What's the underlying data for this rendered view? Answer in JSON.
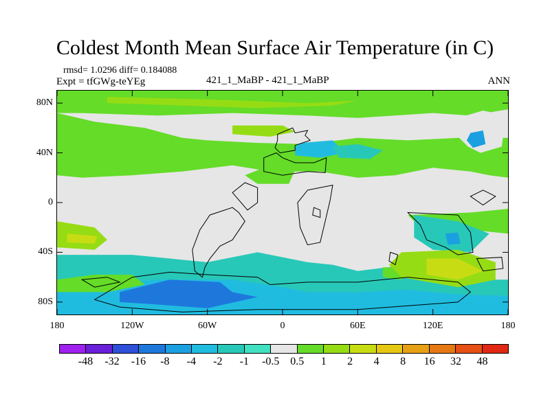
{
  "chart_data": {
    "type": "heatmap",
    "title": "Coldest Month Mean Surface Air Temperature (in C)",
    "stats_text": "rmsd= 1.0296 diff= 0.184088",
    "expt_text": "Expt = tfGWg-teYEg",
    "center_label": "421_1_MaBP - 421_1_MaBP",
    "right_label": "ANN",
    "x_ticks": [
      {
        "value": -180,
        "label": "180"
      },
      {
        "value": -120,
        "label": "120W"
      },
      {
        "value": -60,
        "label": "60W"
      },
      {
        "value": 0,
        "label": "0"
      },
      {
        "value": 60,
        "label": "60E"
      },
      {
        "value": 120,
        "label": "120E"
      },
      {
        "value": 180,
        "label": "180"
      }
    ],
    "y_ticks": [
      {
        "value": 80,
        "label": "80N"
      },
      {
        "value": 40,
        "label": "40N"
      },
      {
        "value": 0,
        "label": "0"
      },
      {
        "value": -40,
        "label": "40S"
      },
      {
        "value": -80,
        "label": "80S"
      }
    ],
    "xlim": [
      -180,
      180
    ],
    "ylim": [
      -90,
      90
    ],
    "colorbar": {
      "colors": [
        "#a020f0",
        "#6a1fd8",
        "#2e4fd8",
        "#1e78dc",
        "#1aa0e0",
        "#20bce0",
        "#28c8b8",
        "#40e0c0",
        "#e6e6e6",
        "#64dc28",
        "#96dc14",
        "#c8dc14",
        "#e6c814",
        "#e6a014",
        "#e67814",
        "#e65014",
        "#e02814"
      ],
      "labels": [
        "-48",
        "-32",
        "-16",
        "-8",
        "-4",
        "-2",
        "-1",
        "-0.5",
        "0.5",
        "1",
        "2",
        "4",
        "8",
        "16",
        "32",
        "48"
      ]
    },
    "regions": [
      {
        "level": "1",
        "points": [
          [
            -180,
            90
          ],
          [
            180,
            90
          ],
          [
            180,
            75
          ],
          [
            150,
            70
          ],
          [
            120,
            72
          ],
          [
            60,
            68
          ],
          [
            20,
            70
          ],
          [
            -40,
            72
          ],
          [
            -100,
            70
          ],
          [
            -160,
            72
          ],
          [
            -180,
            72
          ]
        ]
      },
      {
        "level": "1",
        "points": [
          [
            -180,
            72
          ],
          [
            -150,
            65
          ],
          [
            -110,
            60
          ],
          [
            -80,
            52
          ],
          [
            -60,
            50
          ],
          [
            -20,
            48
          ],
          [
            20,
            47
          ],
          [
            60,
            52
          ],
          [
            100,
            50
          ],
          [
            140,
            52
          ],
          [
            180,
            52
          ],
          [
            180,
            20
          ],
          [
            165,
            22
          ],
          [
            150,
            25
          ],
          [
            120,
            28
          ],
          [
            90,
            22
          ],
          [
            60,
            20
          ],
          [
            30,
            25
          ],
          [
            -10,
            25
          ],
          [
            -40,
            30
          ],
          [
            -80,
            25
          ],
          [
            -120,
            22
          ],
          [
            -160,
            20
          ],
          [
            -180,
            22
          ]
        ]
      },
      {
        "level": "2",
        "points": [
          [
            -140,
            85
          ],
          [
            -60,
            83
          ],
          [
            20,
            80
          ],
          [
            60,
            82
          ],
          [
            40,
            78
          ],
          [
            -20,
            76
          ],
          [
            -80,
            78
          ],
          [
            -140,
            80
          ]
        ]
      },
      {
        "level": "2",
        "points": [
          [
            -40,
            62
          ],
          [
            0,
            62
          ],
          [
            10,
            57
          ],
          [
            -10,
            53
          ],
          [
            -40,
            55
          ]
        ]
      },
      {
        "level": "0.5",
        "points": [
          [
            140,
            68
          ],
          [
            160,
            74
          ],
          [
            178,
            70
          ],
          [
            175,
            45
          ],
          [
            158,
            40
          ],
          [
            148,
            45
          ],
          [
            138,
            55
          ]
        ]
      },
      {
        "level": "-4",
        "points": [
          [
            150,
            56
          ],
          [
            160,
            58
          ],
          [
            162,
            47
          ],
          [
            152,
            44
          ],
          [
            147,
            50
          ]
        ]
      },
      {
        "level": "-2",
        "points": [
          [
            10,
            45
          ],
          [
            15,
            48
          ],
          [
            40,
            50
          ],
          [
            50,
            40
          ],
          [
            30,
            36
          ],
          [
            10,
            38
          ]
        ]
      },
      {
        "level": "-1",
        "points": [
          [
            40,
            45
          ],
          [
            60,
            47
          ],
          [
            80,
            42
          ],
          [
            70,
            35
          ],
          [
            45,
            36
          ]
        ]
      },
      {
        "level": "1",
        "points": [
          [
            -30,
            22
          ],
          [
            -10,
            30
          ],
          [
            10,
            26
          ],
          [
            5,
            15
          ],
          [
            -20,
            15
          ]
        ]
      },
      {
        "level": "1",
        "points": [
          [
            100,
            -10
          ],
          [
            150,
            -8
          ],
          [
            180,
            -5
          ],
          [
            180,
            -25
          ],
          [
            150,
            -22
          ],
          [
            110,
            -20
          ]
        ]
      },
      {
        "level": "-1",
        "points": [
          [
            105,
            -10
          ],
          [
            140,
            -15
          ],
          [
            165,
            -25
          ],
          [
            150,
            -40
          ],
          [
            120,
            -38
          ],
          [
            105,
            -28
          ]
        ]
      },
      {
        "level": "-4",
        "points": [
          [
            130,
            -25
          ],
          [
            140,
            -24
          ],
          [
            142,
            -33
          ],
          [
            132,
            -34
          ]
        ]
      },
      {
        "level": "2",
        "points": [
          [
            -180,
            -15
          ],
          [
            -150,
            -20
          ],
          [
            -140,
            -30
          ],
          [
            -150,
            -38
          ],
          [
            -180,
            -36
          ]
        ]
      },
      {
        "level": "4",
        "points": [
          [
            -172,
            -25
          ],
          [
            -148,
            -27
          ],
          [
            -150,
            -33
          ],
          [
            -172,
            -32
          ]
        ]
      },
      {
        "level": "-1",
        "points": [
          [
            -180,
            -42
          ],
          [
            -120,
            -42
          ],
          [
            -60,
            -48
          ],
          [
            -20,
            -40
          ],
          [
            20,
            -48
          ],
          [
            40,
            -50
          ],
          [
            60,
            -55
          ],
          [
            100,
            -50
          ],
          [
            120,
            -58
          ],
          [
            140,
            -62
          ],
          [
            180,
            -62
          ],
          [
            180,
            -90
          ],
          [
            -180,
            -90
          ]
        ]
      },
      {
        "level": "-2",
        "points": [
          [
            -160,
            -68
          ],
          [
            -100,
            -62
          ],
          [
            -40,
            -62
          ],
          [
            0,
            -68
          ],
          [
            20,
            -72
          ],
          [
            60,
            -72
          ],
          [
            100,
            -70
          ],
          [
            140,
            -74
          ],
          [
            180,
            -75
          ],
          [
            180,
            -90
          ],
          [
            -180,
            -90
          ],
          [
            -180,
            -72
          ]
        ]
      },
      {
        "level": "-8",
        "points": [
          [
            -130,
            -72
          ],
          [
            -90,
            -62
          ],
          [
            -50,
            -64
          ],
          [
            -40,
            -72
          ],
          [
            -20,
            -76
          ],
          [
            -60,
            -85
          ],
          [
            -100,
            -82
          ],
          [
            -130,
            -80
          ]
        ]
      },
      {
        "level": "1",
        "points": [
          [
            -180,
            -62
          ],
          [
            -150,
            -58
          ],
          [
            -120,
            -58
          ],
          [
            -110,
            -66
          ],
          [
            -140,
            -72
          ],
          [
            -180,
            -72
          ]
        ]
      },
      {
        "level": "1",
        "points": [
          [
            80,
            -52
          ],
          [
            100,
            -52
          ],
          [
            95,
            -62
          ],
          [
            80,
            -60
          ]
        ]
      },
      {
        "level": "2",
        "points": [
          [
            95,
            -40
          ],
          [
            140,
            -38
          ],
          [
            170,
            -48
          ],
          [
            170,
            -62
          ],
          [
            140,
            -68
          ],
          [
            95,
            -60
          ],
          [
            85,
            -50
          ]
        ]
      },
      {
        "level": "4",
        "points": [
          [
            115,
            -45
          ],
          [
            140,
            -45
          ],
          [
            160,
            -55
          ],
          [
            140,
            -62
          ],
          [
            115,
            -58
          ]
        ]
      }
    ],
    "coastlines": [
      [
        [
          -4,
          55
        ],
        [
          8,
          60
        ],
        [
          10,
          56
        ],
        [
          20,
          58
        ],
        [
          18,
          54
        ],
        [
          22,
          50
        ],
        [
          10,
          46
        ],
        [
          10,
          42
        ],
        [
          -2,
          40
        ],
        [
          -6,
          44
        ],
        [
          -4,
          50
        ]
      ],
      [
        [
          -15,
          36
        ],
        [
          -5,
          40
        ],
        [
          0,
          36
        ],
        [
          10,
          32
        ],
        [
          25,
          32
        ],
        [
          35,
          36
        ],
        [
          34,
          24
        ],
        [
          20,
          25
        ],
        [
          0,
          22
        ],
        [
          -15,
          25
        ]
      ],
      [
        [
          -40,
          -4
        ],
        [
          -35,
          -8
        ],
        [
          -30,
          -15
        ],
        [
          -40,
          -30
        ],
        [
          -50,
          -35
        ],
        [
          -58,
          -45
        ],
        [
          -62,
          -52
        ],
        [
          -64,
          -60
        ],
        [
          -70,
          -55
        ],
        [
          -72,
          -38
        ],
        [
          -66,
          -22
        ],
        [
          -58,
          -10
        ]
      ],
      [
        [
          -40,
          8
        ],
        [
          -30,
          16
        ],
        [
          -20,
          12
        ],
        [
          -20,
          0
        ],
        [
          -28,
          -6
        ]
      ],
      [
        [
          20,
          10
        ],
        [
          40,
          14
        ],
        [
          38,
          2
        ],
        [
          34,
          -15
        ],
        [
          30,
          -32
        ],
        [
          20,
          -34
        ],
        [
          14,
          -20
        ],
        [
          12,
          0
        ]
      ],
      [
        [
          100,
          -8
        ],
        [
          140,
          -10
        ],
        [
          150,
          -24
        ],
        [
          152,
          -40
        ],
        [
          140,
          -42
        ],
        [
          130,
          -36
        ],
        [
          115,
          -30
        ],
        [
          110,
          -18
        ]
      ],
      [
        [
          155,
          -45
        ],
        [
          175,
          -44
        ],
        [
          176,
          -53
        ],
        [
          160,
          -55
        ]
      ],
      [
        [
          150,
          5
        ],
        [
          160,
          10
        ],
        [
          170,
          5
        ],
        [
          160,
          -2
        ]
      ],
      [
        [
          -120,
          -60
        ],
        [
          -90,
          -56
        ],
        [
          -60,
          -58
        ],
        [
          -20,
          -60
        ],
        [
          -10,
          -66
        ],
        [
          20,
          -64
        ],
        [
          60,
          -64
        ],
        [
          100,
          -60
        ],
        [
          140,
          -64
        ],
        [
          150,
          -72
        ],
        [
          140,
          -80
        ],
        [
          60,
          -86
        ],
        [
          -20,
          -86
        ],
        [
          -80,
          -88
        ],
        [
          -130,
          -84
        ],
        [
          -150,
          -78
        ]
      ],
      [
        [
          -160,
          -62
        ],
        [
          -140,
          -60
        ],
        [
          -130,
          -64
        ],
        [
          -150,
          -68
        ]
      ],
      [
        [
          25,
          -4
        ],
        [
          30,
          -6
        ],
        [
          30,
          -12
        ],
        [
          24,
          -10
        ]
      ],
      [
        [
          86,
          -40
        ],
        [
          92,
          -42
        ],
        [
          90,
          -50
        ],
        [
          85,
          -47
        ]
      ]
    ]
  }
}
